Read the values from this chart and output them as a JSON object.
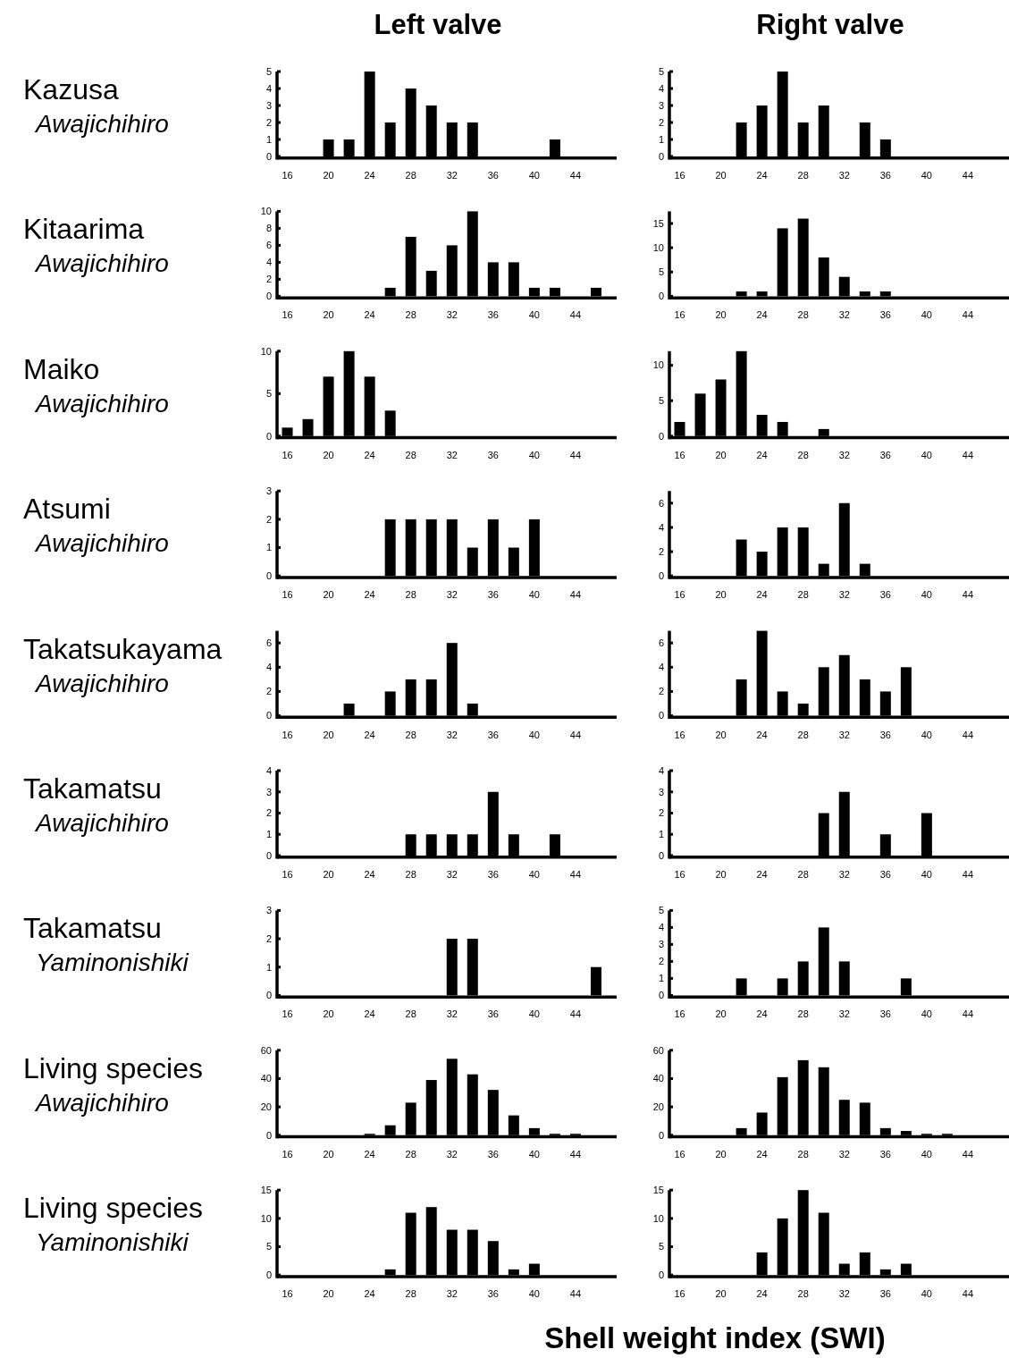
{
  "chart_data": [
    {
      "type": "bar",
      "title": "Kazusa",
      "subtitle": "Awajichihiro",
      "annotations": [
        "Left valve"
      ],
      "x": [
        16,
        18,
        20,
        22,
        24,
        26,
        28,
        30,
        32,
        34,
        36,
        38,
        40,
        42,
        44,
        46
      ],
      "values": [
        0,
        0,
        1,
        1,
        5,
        2,
        4,
        3,
        2,
        2,
        0,
        0,
        0,
        1,
        0,
        0
      ],
      "color": "#000000",
      "xlim": [
        15,
        48
      ],
      "xticks": [
        16,
        20,
        24,
        28,
        32,
        36,
        40,
        44
      ],
      "ylim": [
        0,
        5
      ],
      "yticks": [
        0,
        1,
        2,
        3,
        4,
        5
      ]
    },
    {
      "type": "bar",
      "annotations": [
        "Right valve"
      ],
      "x": [
        16,
        18,
        20,
        22,
        24,
        26,
        28,
        30,
        32,
        34,
        36,
        38,
        40,
        42,
        44,
        46
      ],
      "values": [
        0,
        0,
        0,
        2,
        3,
        5,
        2,
        3,
        0,
        2,
        1,
        0,
        0,
        0,
        0,
        0
      ],
      "color": "#000000",
      "xlim": [
        15,
        48
      ],
      "xticks": [
        16,
        20,
        24,
        28,
        32,
        36,
        40,
        44
      ],
      "ylim": [
        0,
        5
      ],
      "yticks": [
        0,
        1,
        2,
        3,
        4,
        5
      ]
    },
    {
      "type": "bar",
      "title": "Kitaarima",
      "subtitle": "Awajichihiro",
      "x": [
        16,
        18,
        20,
        22,
        24,
        26,
        28,
        30,
        32,
        34,
        36,
        38,
        40,
        42,
        44,
        46
      ],
      "values": [
        0,
        0,
        0,
        0,
        0,
        1,
        7,
        3,
        6,
        10,
        4,
        4,
        1,
        1,
        0,
        1
      ],
      "color": "#000000",
      "xlim": [
        15,
        48
      ],
      "xticks": [
        16,
        20,
        24,
        28,
        32,
        36,
        40,
        44
      ],
      "ylim": [
        0,
        10
      ],
      "yticks": [
        0,
        2,
        4,
        6,
        8,
        10
      ]
    },
    {
      "type": "bar",
      "x": [
        16,
        18,
        20,
        22,
        24,
        26,
        28,
        30,
        32,
        34,
        36,
        38,
        40,
        42,
        44,
        46
      ],
      "values": [
        0,
        0,
        0,
        1,
        1,
        14,
        16,
        8,
        4,
        1,
        1,
        0,
        0,
        0,
        0,
        0
      ],
      "color": "#000000",
      "xlim": [
        15,
        48
      ],
      "xticks": [
        16,
        20,
        24,
        28,
        32,
        36,
        40,
        44
      ],
      "ylim": [
        0,
        17.5
      ],
      "yticks": [
        0,
        5,
        10,
        15
      ]
    },
    {
      "type": "bar",
      "title": "Maiko",
      "subtitle": "Awajichihiro",
      "x": [
        16,
        18,
        20,
        22,
        24,
        26,
        28,
        30,
        32,
        34,
        36,
        38,
        40,
        42,
        44,
        46
      ],
      "values": [
        1,
        2,
        7,
        10,
        7,
        3,
        0,
        0,
        0,
        0,
        0,
        0,
        0,
        0,
        0,
        0
      ],
      "color": "#000000",
      "xlim": [
        15,
        48
      ],
      "xticks": [
        16,
        20,
        24,
        28,
        32,
        36,
        40,
        44
      ],
      "ylim": [
        0,
        10
      ],
      "yticks": [
        0,
        5,
        10
      ]
    },
    {
      "type": "bar",
      "x": [
        16,
        18,
        20,
        22,
        24,
        26,
        28,
        30,
        32,
        34,
        36,
        38,
        40,
        42,
        44,
        46
      ],
      "values": [
        2,
        6,
        8,
        12,
        3,
        2,
        0,
        1,
        0,
        0,
        0,
        0,
        0,
        0,
        0,
        0
      ],
      "color": "#000000",
      "xlim": [
        15,
        48
      ],
      "xticks": [
        16,
        20,
        24,
        28,
        32,
        36,
        40,
        44
      ],
      "ylim": [
        0,
        12
      ],
      "yticks": [
        0,
        5,
        10
      ]
    },
    {
      "type": "bar",
      "title": "Atsumi",
      "subtitle": "Awajichihiro",
      "x": [
        16,
        18,
        20,
        22,
        24,
        26,
        28,
        30,
        32,
        34,
        36,
        38,
        40,
        42,
        44,
        46
      ],
      "values": [
        0,
        0,
        0,
        0,
        0,
        2,
        2,
        2,
        2,
        1,
        2,
        1,
        2,
        0,
        0,
        0
      ],
      "color": "#000000",
      "xlim": [
        15,
        48
      ],
      "xticks": [
        16,
        20,
        24,
        28,
        32,
        36,
        40,
        44
      ],
      "ylim": [
        0,
        3
      ],
      "yticks": [
        0,
        1,
        2,
        3
      ]
    },
    {
      "type": "bar",
      "x": [
        16,
        18,
        20,
        22,
        24,
        26,
        28,
        30,
        32,
        34,
        36,
        38,
        40,
        42,
        44,
        46
      ],
      "values": [
        0,
        0,
        0,
        3,
        2,
        4,
        4,
        1,
        6,
        1,
        0,
        0,
        0,
        0,
        0,
        0
      ],
      "color": "#000000",
      "xlim": [
        15,
        48
      ],
      "xticks": [
        16,
        20,
        24,
        28,
        32,
        36,
        40,
        44
      ],
      "ylim": [
        0,
        7
      ],
      "yticks": [
        0,
        2,
        4,
        6
      ]
    },
    {
      "type": "bar",
      "title": "Takatsukayama",
      "subtitle": "Awajichihiro",
      "x": [
        16,
        18,
        20,
        22,
        24,
        26,
        28,
        30,
        32,
        34,
        36,
        38,
        40,
        42,
        44,
        46
      ],
      "values": [
        0,
        0,
        0,
        1,
        0,
        2,
        3,
        3,
        6,
        1,
        0,
        0,
        0,
        0,
        0,
        0
      ],
      "color": "#000000",
      "xlim": [
        15,
        48
      ],
      "xticks": [
        16,
        20,
        24,
        28,
        32,
        36,
        40,
        44
      ],
      "ylim": [
        0,
        7
      ],
      "yticks": [
        0,
        2,
        4,
        6
      ]
    },
    {
      "type": "bar",
      "x": [
        16,
        18,
        20,
        22,
        24,
        26,
        28,
        30,
        32,
        34,
        36,
        38,
        40,
        42,
        44,
        46
      ],
      "values": [
        0,
        0,
        0,
        3,
        7,
        2,
        1,
        4,
        5,
        3,
        2,
        4,
        0,
        0,
        0,
        0
      ],
      "color": "#000000",
      "xlim": [
        15,
        48
      ],
      "xticks": [
        16,
        20,
        24,
        28,
        32,
        36,
        40,
        44
      ],
      "ylim": [
        0,
        7
      ],
      "yticks": [
        0,
        2,
        4,
        6
      ]
    },
    {
      "type": "bar",
      "title": "Takamatsu",
      "subtitle": "Awajichihiro",
      "x": [
        16,
        18,
        20,
        22,
        24,
        26,
        28,
        30,
        32,
        34,
        36,
        38,
        40,
        42,
        44,
        46
      ],
      "values": [
        0,
        0,
        0,
        0,
        0,
        0,
        1,
        1,
        1,
        1,
        3,
        1,
        0,
        1,
        0,
        0
      ],
      "color": "#000000",
      "xlim": [
        15,
        48
      ],
      "xticks": [
        16,
        20,
        24,
        28,
        32,
        36,
        40,
        44
      ],
      "ylim": [
        0,
        4
      ],
      "yticks": [
        0,
        1,
        2,
        3,
        4
      ]
    },
    {
      "type": "bar",
      "x": [
        16,
        18,
        20,
        22,
        24,
        26,
        28,
        30,
        32,
        34,
        36,
        38,
        40,
        42,
        44,
        46
      ],
      "values": [
        0,
        0,
        0,
        0,
        0,
        0,
        0,
        2,
        3,
        0,
        1,
        0,
        2,
        0,
        0,
        0
      ],
      "color": "#000000",
      "xlim": [
        15,
        48
      ],
      "xticks": [
        16,
        20,
        24,
        28,
        32,
        36,
        40,
        44
      ],
      "ylim": [
        0,
        4
      ],
      "yticks": [
        0,
        1,
        2,
        3,
        4
      ]
    },
    {
      "type": "bar",
      "title": "Takamatsu",
      "subtitle": "Yaminonishiki",
      "x": [
        16,
        18,
        20,
        22,
        24,
        26,
        28,
        30,
        32,
        34,
        36,
        38,
        40,
        42,
        44,
        46
      ],
      "values": [
        0,
        0,
        0,
        0,
        0,
        0,
        0,
        0,
        2,
        2,
        0,
        0,
        0,
        0,
        0,
        1
      ],
      "color": "#000000",
      "xlim": [
        15,
        48
      ],
      "xticks": [
        16,
        20,
        24,
        28,
        32,
        36,
        40,
        44
      ],
      "ylim": [
        0,
        3
      ],
      "yticks": [
        0,
        1,
        2,
        3
      ]
    },
    {
      "type": "bar",
      "x": [
        16,
        18,
        20,
        22,
        24,
        26,
        28,
        30,
        32,
        34,
        36,
        38,
        40,
        42,
        44,
        46
      ],
      "values": [
        0,
        0,
        0,
        1,
        0,
        1,
        2,
        4,
        2,
        0,
        0,
        1,
        0,
        0,
        0,
        0
      ],
      "color": "#000000",
      "xlim": [
        15,
        48
      ],
      "xticks": [
        16,
        20,
        24,
        28,
        32,
        36,
        40,
        44
      ],
      "ylim": [
        0,
        5
      ],
      "yticks": [
        0,
        1,
        2,
        3,
        4,
        5
      ]
    },
    {
      "type": "bar",
      "title": "Living species",
      "subtitle": "Awajichihiro",
      "x": [
        16,
        18,
        20,
        22,
        24,
        26,
        28,
        30,
        32,
        34,
        36,
        38,
        40,
        42,
        44,
        46
      ],
      "values": [
        0,
        0,
        0,
        0,
        1,
        7,
        23,
        39,
        54,
        43,
        32,
        14,
        5,
        1,
        1,
        0
      ],
      "color": "#000000",
      "xlim": [
        15,
        48
      ],
      "xticks": [
        16,
        20,
        24,
        28,
        32,
        36,
        40,
        44
      ],
      "ylim": [
        0,
        60
      ],
      "yticks": [
        0,
        20,
        40,
        60
      ]
    },
    {
      "type": "bar",
      "x": [
        16,
        18,
        20,
        22,
        24,
        26,
        28,
        30,
        32,
        34,
        36,
        38,
        40,
        42,
        44,
        46
      ],
      "values": [
        0,
        0,
        0,
        5,
        16,
        41,
        53,
        48,
        25,
        23,
        5,
        3,
        1,
        1,
        0,
        0
      ],
      "color": "#000000",
      "xlim": [
        15,
        48
      ],
      "xticks": [
        16,
        20,
        24,
        28,
        32,
        36,
        40,
        44
      ],
      "ylim": [
        0,
        60
      ],
      "yticks": [
        0,
        20,
        40,
        60
      ]
    },
    {
      "type": "bar",
      "title": "Living species",
      "subtitle": "Yaminonishiki",
      "xlabel": "Shell weight index (SWI)",
      "x": [
        16,
        18,
        20,
        22,
        24,
        26,
        28,
        30,
        32,
        34,
        36,
        38,
        40,
        42,
        44,
        46
      ],
      "values": [
        0,
        0,
        0,
        0,
        0,
        1,
        11,
        12,
        8,
        8,
        6,
        1,
        2,
        0,
        0,
        0
      ],
      "color": "#000000",
      "xlim": [
        15,
        48
      ],
      "xticks": [
        16,
        20,
        24,
        28,
        32,
        36,
        40,
        44
      ],
      "ylim": [
        0,
        15
      ],
      "yticks": [
        0,
        5,
        10,
        15
      ]
    },
    {
      "type": "bar",
      "x": [
        16,
        18,
        20,
        22,
        24,
        26,
        28,
        30,
        32,
        34,
        36,
        38,
        40,
        42,
        44,
        46
      ],
      "values": [
        0,
        0,
        0,
        0,
        4,
        10,
        15,
        11,
        2,
        4,
        1,
        2,
        0,
        0,
        0,
        0
      ],
      "color": "#000000",
      "xlim": [
        15,
        48
      ],
      "xticks": [
        16,
        20,
        24,
        28,
        32,
        36,
        40,
        44
      ],
      "ylim": [
        0,
        15
      ],
      "yticks": [
        0,
        5,
        10,
        15
      ]
    }
  ]
}
